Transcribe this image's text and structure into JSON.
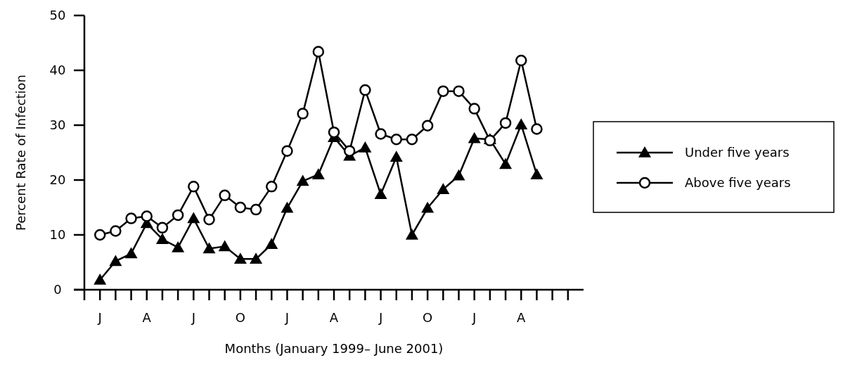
{
  "chart_data": {
    "type": "line",
    "xlabel": "Months (January 1999– June 2001)",
    "ylabel": "Percent Rate of Infection",
    "categories": [
      "J",
      null,
      null,
      "A",
      null,
      null,
      "J",
      null,
      null,
      "O",
      null,
      null,
      "J",
      null,
      null,
      "A",
      null,
      null,
      "J",
      null,
      null,
      "O",
      null,
      null,
      "J",
      null,
      null,
      "A",
      null
    ],
    "ylim": [
      0,
      50
    ],
    "yticks": [
      0,
      10,
      20,
      30,
      40,
      50
    ],
    "series": [
      {
        "name": "Under five years",
        "color": "#000000",
        "marker": "triangle",
        "values": [
          1.8,
          5.2,
          6.6,
          12.1,
          9.2,
          7.7,
          13.0,
          7.5,
          7.9,
          5.6,
          5.6,
          8.3,
          14.9,
          19.8,
          21.0,
          27.8,
          24.4,
          25.9,
          17.4,
          24.2,
          10.0,
          14.9,
          18.3,
          20.8,
          27.6,
          27.4,
          22.9,
          30.1,
          21.0
        ]
      },
      {
        "name": "Above five years",
        "color": "#000000",
        "marker": "circle",
        "values": [
          10.0,
          10.7,
          13.0,
          13.4,
          11.3,
          13.6,
          18.8,
          12.8,
          17.2,
          15.0,
          14.6,
          18.8,
          25.3,
          32.1,
          43.4,
          28.7,
          25.3,
          36.4,
          28.4,
          27.4,
          27.4,
          29.9,
          36.2,
          36.2,
          33.0,
          27.2,
          30.4,
          41.8,
          29.3
        ]
      }
    ],
    "line_style": "solid",
    "grid": false,
    "legend": "right"
  }
}
